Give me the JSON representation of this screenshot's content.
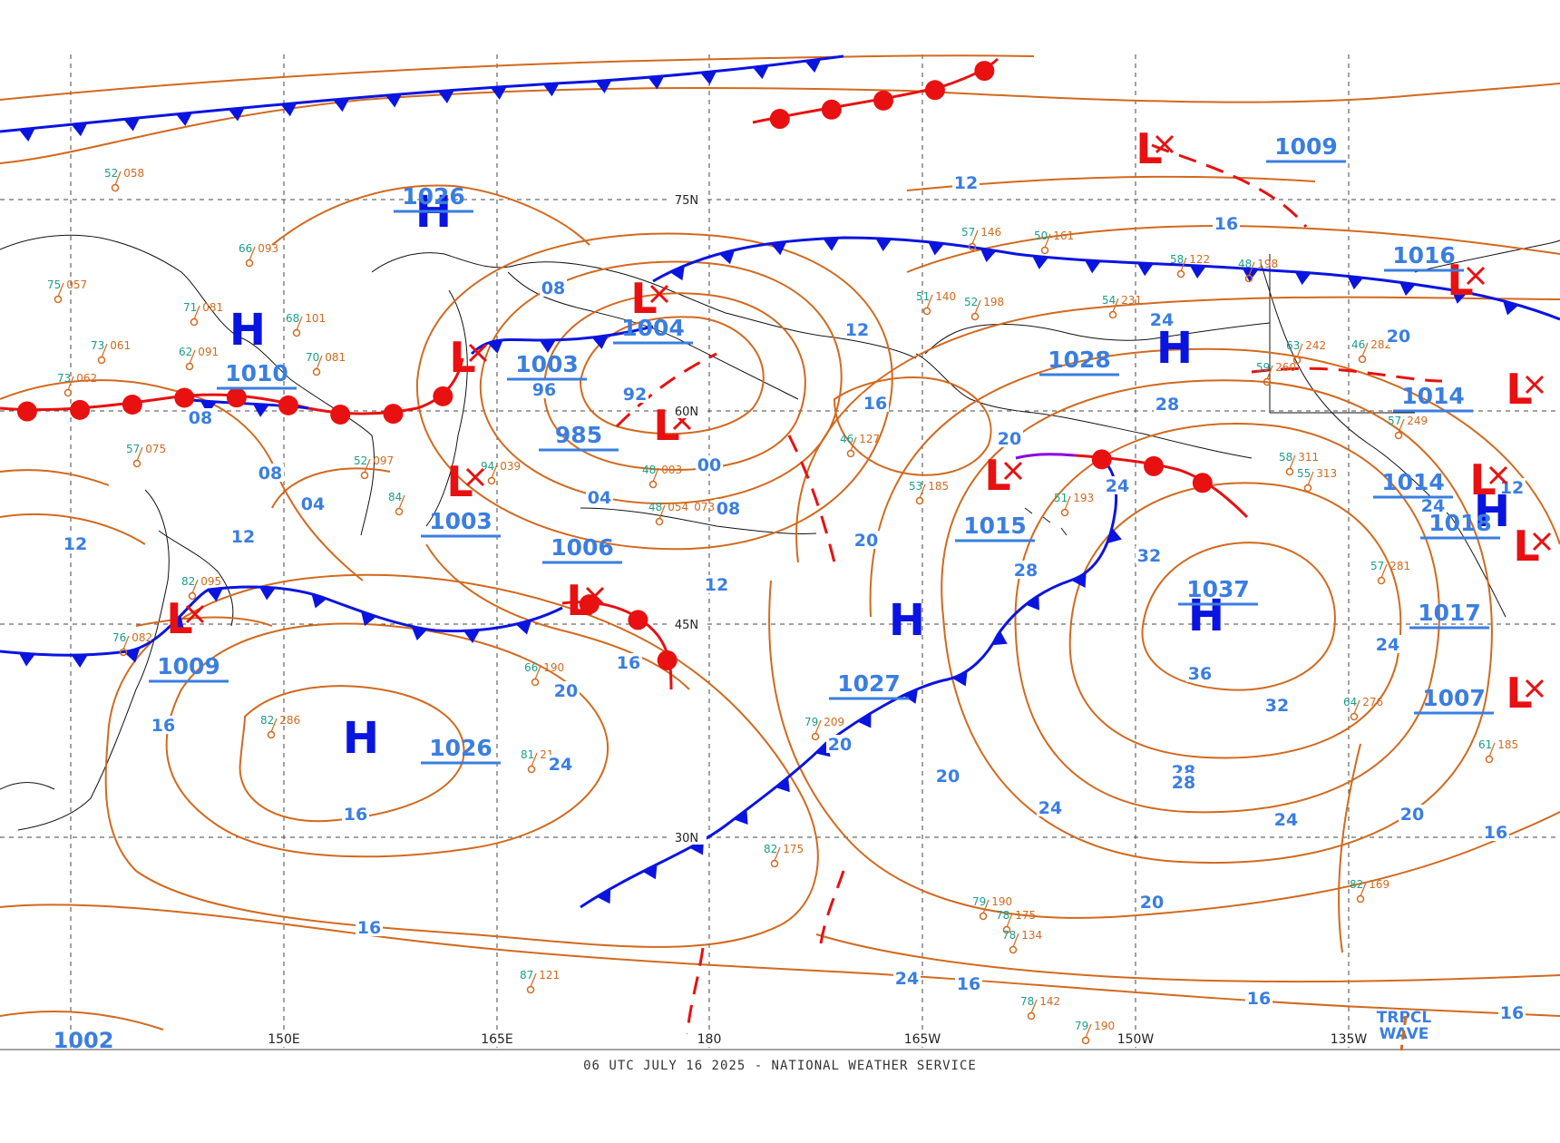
{
  "map": {
    "footer": "06 UTC JULY 16 2025 - NATIONAL WEATHER SERVICE",
    "colors": {
      "isobar": "#d2691e",
      "isobar_label": "#3a7ee0",
      "high": "#0a14e0",
      "low": "#e81010",
      "cold_front": "#0a14e0",
      "warm_front": "#e81010",
      "occluded_front": "#8a00e0",
      "grid": "#444444",
      "coastline": "#111111"
    },
    "longitude_labels": [
      "150E",
      "165E",
      "180",
      "165W",
      "150W",
      "135W"
    ],
    "latitude_labels": [
      "75N",
      "60N",
      "45N",
      "30N"
    ],
    "highs": [
      {
        "symbol": "H",
        "pressure": "1026"
      },
      {
        "symbol": "H",
        "pressure": "1010"
      },
      {
        "symbol": "H",
        "pressure": "1026"
      },
      {
        "symbol": "H",
        "pressure": "1027"
      },
      {
        "symbol": "H",
        "pressure": "1028"
      },
      {
        "symbol": "H",
        "pressure": "1037"
      },
      {
        "symbol": "H",
        "pressure": "1018"
      }
    ],
    "lows": [
      {
        "symbol": "L",
        "pressure": "1003"
      },
      {
        "symbol": "L",
        "pressure": "985"
      },
      {
        "symbol": "L",
        "pressure": "1004"
      },
      {
        "symbol": "L",
        "pressure": "1003"
      },
      {
        "symbol": "L",
        "pressure": "1006"
      },
      {
        "symbol": "L",
        "pressure": "1009"
      },
      {
        "symbol": "L",
        "pressure": "1015"
      },
      {
        "symbol": "L",
        "pressure": "1009"
      },
      {
        "symbol": "L",
        "pressure": "1016"
      },
      {
        "symbol": "L",
        "pressure": "1014"
      },
      {
        "symbol": "L",
        "pressure": "1014"
      },
      {
        "symbol": "L",
        "pressure": "1017"
      },
      {
        "symbol": "L",
        "pressure": "1007"
      }
    ],
    "other_pressure_labels": [
      "1002"
    ],
    "isobar_labels": [
      "12",
      "16",
      "08",
      "08",
      "96",
      "92",
      "00",
      "08",
      "04",
      "12",
      "12",
      "08",
      "04",
      "12",
      "16",
      "20",
      "20",
      "24",
      "16",
      "16",
      "12",
      "16",
      "20",
      "20",
      "24",
      "28",
      "24",
      "32",
      "36",
      "32",
      "28",
      "24",
      "24",
      "24",
      "20",
      "16",
      "20",
      "16",
      "16",
      "16",
      "24",
      "20",
      "28",
      "28",
      "24",
      "20",
      "16",
      "12"
    ],
    "tropical_wave_label": [
      "TRPCL",
      "WAVE"
    ],
    "station_plots": [
      "52 058",
      "66 093",
      "75 057",
      "71 081",
      "73 061",
      "68 101",
      "70 081",
      "62 091",
      "73 062",
      "57 075",
      "52 097",
      "84",
      "94 039",
      "48 003",
      "48 054 073",
      "82 095",
      "76 082",
      "82 286",
      "66 190",
      "81 21",
      "79 209",
      "82 175",
      "79 190",
      "78 175",
      "87 121",
      "78 134",
      "78 142",
      "79 190",
      "57 146",
      "50 161",
      "54 231",
      "48 198",
      "58 311",
      "55 313",
      "57 281",
      "61 185",
      "82 169",
      "64 276",
      "46 127",
      "53 185",
      "51 193",
      "51 140",
      "52 198",
      "58 122",
      "63 242",
      "46 282",
      "59 260",
      "57 249"
    ]
  }
}
